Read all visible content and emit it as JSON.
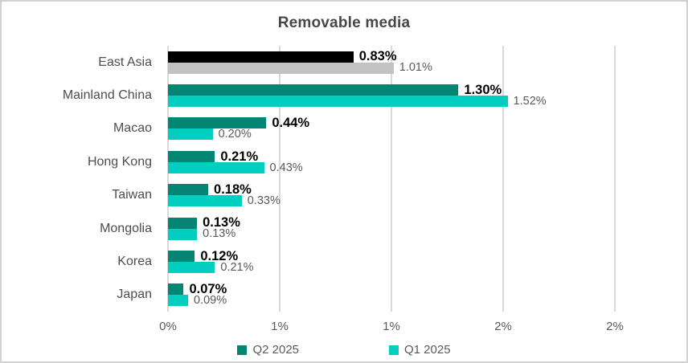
{
  "title": "Removable media",
  "chart_data": {
    "type": "bar",
    "orientation": "horizontal",
    "title": "Removable media",
    "categories": [
      "East Asia",
      "Mainland China",
      "Macao",
      "Hong Kong",
      "Taiwan",
      "Mongolia",
      "Korea",
      "Japan"
    ],
    "series": [
      {
        "name": "Q2 2025",
        "color": "#028572",
        "values": [
          0.83,
          1.3,
          0.44,
          0.21,
          0.18,
          0.13,
          0.12,
          0.07
        ],
        "labels": [
          "0.83%",
          "1.30%",
          "0.44%",
          "0.21%",
          "0.18%",
          "0.13%",
          "0.12%",
          "0.07%"
        ],
        "bar_colors": [
          "#000000",
          "#028572",
          "#028572",
          "#028572",
          "#028572",
          "#028572",
          "#028572",
          "#028572"
        ]
      },
      {
        "name": "Q1 2025",
        "color": "#00cfc0",
        "values": [
          1.01,
          1.52,
          0.2,
          0.43,
          0.33,
          0.13,
          0.21,
          0.09
        ],
        "labels": [
          "1.01%",
          "1.52%",
          "0.20%",
          "0.43%",
          "0.33%",
          "0.13%",
          "0.21%",
          "0.09%"
        ],
        "bar_colors": [
          "#c2c2c2",
          "#00cfc0",
          "#00cfc0",
          "#00cfc0",
          "#00cfc0",
          "#00cfc0",
          "#00cfc0",
          "#00cfc0"
        ]
      }
    ],
    "xlim": [
      0,
      2
    ],
    "xticks": [
      0,
      0.5,
      1,
      1.5,
      2
    ],
    "xtick_labels": [
      "0%",
      "1%",
      "1%",
      "2%",
      "2%"
    ],
    "grid": true,
    "legend_position": "bottom"
  },
  "legend": {
    "items": [
      {
        "label": "Q2 2025",
        "color": "#028572"
      },
      {
        "label": "Q1 2025",
        "color": "#00cfc0"
      }
    ]
  },
  "colors": {
    "grid": "#d9d9d9",
    "axis_text": "#595959",
    "category_text": "#4d4d4d",
    "title_text": "#474747",
    "value_label_primary": "#000000",
    "value_label_secondary": "#595959",
    "east_asia_q2": "#000000",
    "east_asia_q1": "#c2c2c2",
    "border": "#d1d1d1"
  }
}
